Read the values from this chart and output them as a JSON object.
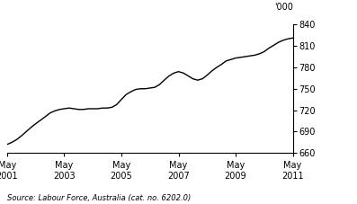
{
  "title": "",
  "ylabel": "'000",
  "source_text": "Source: Labour Force, Australia (cat. no. 6202.0)",
  "ylim": [
    660,
    840
  ],
  "yticks": [
    660,
    690,
    720,
    750,
    780,
    810,
    840
  ],
  "xtick_years": [
    2001,
    2003,
    2005,
    2007,
    2009,
    2011
  ],
  "line_color": "#000000",
  "line_width": 1.0,
  "bg_color": "#ffffff",
  "x_values": [
    2001.33,
    2001.5,
    2001.67,
    2001.83,
    2002.0,
    2002.17,
    2002.33,
    2002.5,
    2002.67,
    2002.83,
    2003.0,
    2003.17,
    2003.33,
    2003.5,
    2003.67,
    2003.83,
    2004.0,
    2004.17,
    2004.33,
    2004.5,
    2004.67,
    2004.83,
    2005.0,
    2005.17,
    2005.33,
    2005.5,
    2005.67,
    2005.83,
    2006.0,
    2006.17,
    2006.33,
    2006.5,
    2006.67,
    2006.83,
    2007.0,
    2007.17,
    2007.33,
    2007.5,
    2007.67,
    2007.83,
    2008.0,
    2008.17,
    2008.33,
    2008.5,
    2008.67,
    2008.83,
    2009.0,
    2009.17,
    2009.33,
    2009.5,
    2009.67,
    2009.83,
    2010.0,
    2010.17,
    2010.33,
    2010.5,
    2010.67,
    2010.83,
    2011.0,
    2011.17,
    2011.33
  ],
  "y_values": [
    672,
    675,
    679,
    684,
    690,
    696,
    701,
    706,
    711,
    716,
    719,
    721,
    722,
    723,
    722,
    721,
    721,
    722,
    722,
    722,
    723,
    723,
    724,
    728,
    735,
    742,
    746,
    749,
    750,
    750,
    751,
    752,
    756,
    762,
    768,
    772,
    774,
    772,
    768,
    764,
    762,
    764,
    769,
    775,
    780,
    784,
    789,
    791,
    793,
    794,
    795,
    796,
    797,
    799,
    802,
    807,
    811,
    815,
    818,
    820,
    821
  ]
}
